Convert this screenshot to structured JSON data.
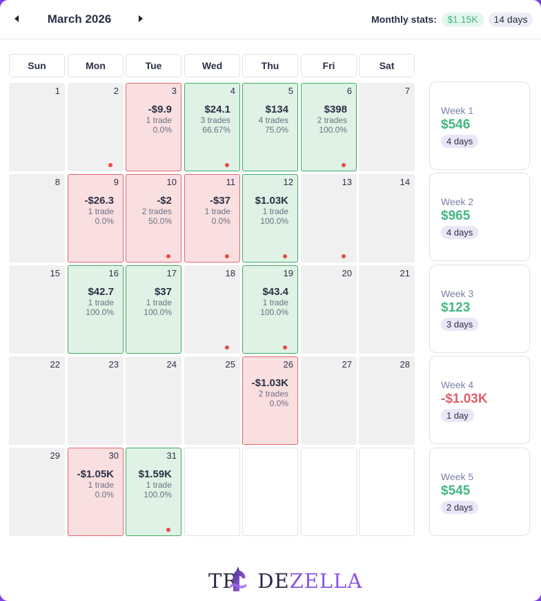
{
  "header": {
    "month_title": "March 2026",
    "stats_label": "Monthly stats:",
    "monthly_amount": "$1.15K",
    "monthly_days": "14 days"
  },
  "weekdays": [
    "Sun",
    "Mon",
    "Tue",
    "Wed",
    "Thu",
    "Fri",
    "Sat"
  ],
  "days": [
    {
      "day": "1",
      "status": "neutral"
    },
    {
      "day": "2",
      "status": "neutral",
      "dot": true
    },
    {
      "day": "3",
      "status": "loss",
      "pnl": "-$9.9",
      "trades": "1 trade",
      "rate": "0.0%"
    },
    {
      "day": "4",
      "status": "win",
      "pnl": "$24.1",
      "trades": "3 trades",
      "rate": "66.67%",
      "dot": true
    },
    {
      "day": "5",
      "status": "win",
      "pnl": "$134",
      "trades": "4 trades",
      "rate": "75.0%"
    },
    {
      "day": "6",
      "status": "win",
      "pnl": "$398",
      "trades": "2 trades",
      "rate": "100.0%",
      "dot": true
    },
    {
      "day": "7",
      "status": "neutral"
    },
    {
      "day": "8",
      "status": "neutral"
    },
    {
      "day": "9",
      "status": "loss",
      "pnl": "-$26.3",
      "trades": "1 trade",
      "rate": "0.0%"
    },
    {
      "day": "10",
      "status": "loss",
      "pnl": "-$2",
      "trades": "2 trades",
      "rate": "50.0%",
      "dot": true
    },
    {
      "day": "11",
      "status": "loss",
      "pnl": "-$37",
      "trades": "1 trade",
      "rate": "0.0%",
      "dot": true
    },
    {
      "day": "12",
      "status": "win",
      "pnl": "$1.03K",
      "trades": "1 trade",
      "rate": "100.0%",
      "dot": true
    },
    {
      "day": "13",
      "status": "neutral",
      "dot": true
    },
    {
      "day": "14",
      "status": "neutral"
    },
    {
      "day": "15",
      "status": "neutral"
    },
    {
      "day": "16",
      "status": "win",
      "pnl": "$42.7",
      "trades": "1 trade",
      "rate": "100.0%"
    },
    {
      "day": "17",
      "status": "win",
      "pnl": "$37",
      "trades": "1 trade",
      "rate": "100.0%"
    },
    {
      "day": "18",
      "status": "neutral",
      "dot": true
    },
    {
      "day": "19",
      "status": "win",
      "pnl": "$43.4",
      "trades": "1 trade",
      "rate": "100.0%",
      "dot": true
    },
    {
      "day": "20",
      "status": "neutral"
    },
    {
      "day": "21",
      "status": "neutral"
    },
    {
      "day": "22",
      "status": "neutral"
    },
    {
      "day": "23",
      "status": "neutral"
    },
    {
      "day": "24",
      "status": "neutral"
    },
    {
      "day": "25",
      "status": "neutral"
    },
    {
      "day": "26",
      "status": "loss",
      "pnl": "-$1.03K",
      "trades": "2 trades",
      "rate": "0.0%"
    },
    {
      "day": "27",
      "status": "neutral"
    },
    {
      "day": "28",
      "status": "neutral"
    },
    {
      "day": "29",
      "status": "neutral"
    },
    {
      "day": "30",
      "status": "loss",
      "pnl": "-$1.05K",
      "trades": "1 trade",
      "rate": "0.0%"
    },
    {
      "day": "31",
      "status": "win",
      "pnl": "$1.59K",
      "trades": "1 trade",
      "rate": "100.0%",
      "dot": true
    },
    {
      "day": "",
      "status": "blank"
    },
    {
      "day": "",
      "status": "blank"
    },
    {
      "day": "",
      "status": "blank"
    },
    {
      "day": "",
      "status": "blank"
    }
  ],
  "weeks": [
    {
      "label": "Week 1",
      "amount": "$546",
      "sign": "pos",
      "days": "4 days"
    },
    {
      "label": "Week 2",
      "amount": "$965",
      "sign": "pos",
      "days": "4 days"
    },
    {
      "label": "Week 3",
      "amount": "$123",
      "sign": "pos",
      "days": "3 days"
    },
    {
      "label": "Week 4",
      "amount": "-$1.03K",
      "sign": "neg",
      "days": "1 day"
    },
    {
      "label": "Week 5",
      "amount": "$545",
      "sign": "pos",
      "days": "2 days"
    }
  ],
  "logo": {
    "text_dark_1": "TR",
    "text_dark_2": "DE",
    "text_purple": "ZELLA"
  },
  "colors": {
    "win_bg": "#dff2e5",
    "win_border": "#3aaa62",
    "loss_bg": "#fadfe1",
    "loss_border": "#e0646a",
    "accent": "#7b3fe4"
  }
}
